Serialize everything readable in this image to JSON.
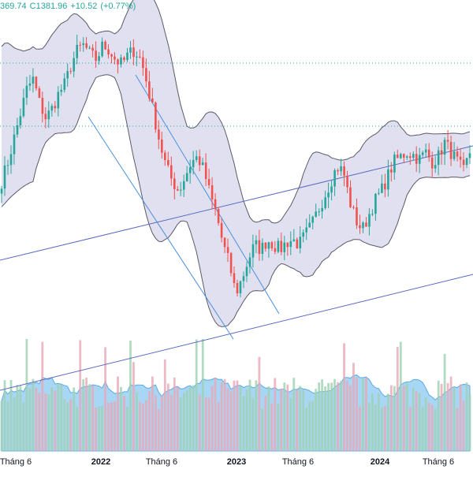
{
  "header": {
    "ohlc_partial": "369.74",
    "close": "C1381.96",
    "change": "+10.52",
    "change_pct": "(+0.77%)"
  },
  "colors": {
    "up": "#26a69a",
    "down": "#ef5350",
    "band_fill": "#d7d6ec",
    "band_line": "#5a5a66",
    "channel_line": "#5c6bc0",
    "downtrend_line": "#4a90d9",
    "volume_bar": "#7fb4ea",
    "volume_ma_area": "#9fd3f5",
    "dotted_level": "#26a69a"
  },
  "chart_data": {
    "type": "candlestick",
    "title": "",
    "x_ticks": [
      {
        "label": "Tháng 6",
        "major": false
      },
      {
        "label": "2022",
        "major": true
      },
      {
        "label": "Tháng 6",
        "major": false
      },
      {
        "label": "2023",
        "major": true
      },
      {
        "label": "Tháng 6",
        "major": false
      },
      {
        "label": "2024",
        "major": true
      },
      {
        "label": "Tháng 6",
        "major": false
      }
    ],
    "price_range": [
      880,
      1560
    ],
    "last_close": 1381.96,
    "indicators": [
      "bollinger_bands",
      "parallel_channel",
      "descending_trendlines",
      "volume",
      "volume_ma"
    ],
    "price_path": [
      1220,
      1260,
      1310,
      1360,
      1410,
      1430,
      1380,
      1350,
      1370,
      1400,
      1420,
      1460,
      1490,
      1500,
      1480,
      1470,
      1500,
      1490,
      1470,
      1460,
      1480,
      1490,
      1470,
      1420,
      1360,
      1300,
      1250,
      1220,
      1200,
      1230,
      1260,
      1270,
      1240,
      1190,
      1150,
      1090,
      1050,
      990,
      1020,
      1060,
      1090,
      1080,
      1100,
      1090,
      1080,
      1095,
      1100,
      1090,
      1110,
      1130,
      1160,
      1190,
      1220,
      1250,
      1240,
      1180,
      1140,
      1120,
      1150,
      1180,
      1200,
      1230,
      1260,
      1270,
      1280,
      1275,
      1265,
      1280,
      1260,
      1270,
      1300,
      1280,
      1260,
      1240,
      1280
    ]
  }
}
